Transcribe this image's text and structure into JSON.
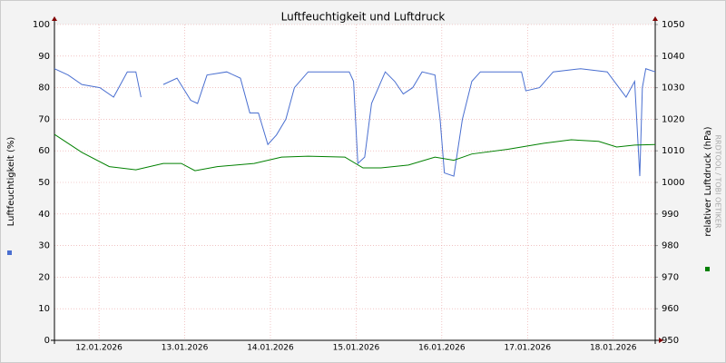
{
  "chart_data": {
    "type": "line",
    "title": "Luftfeuchtigkeit und Luftdruck",
    "watermark": "RRDTOOL / TOBI OETIKER",
    "xlim": [
      11.48,
      18.49
    ],
    "xticks": [
      {
        "value": 12,
        "label": "12.01.2026"
      },
      {
        "value": 13,
        "label": "13.01.2026"
      },
      {
        "value": 14,
        "label": "14.01.2026"
      },
      {
        "value": 15,
        "label": "15.01.2026"
      },
      {
        "value": 16,
        "label": "16.01.2026"
      },
      {
        "value": 17,
        "label": "17.01.2026"
      },
      {
        "value": 18,
        "label": "18.01.2026"
      }
    ],
    "ylim": [
      0,
      100
    ],
    "yticks": [
      0,
      10,
      20,
      30,
      40,
      50,
      60,
      70,
      80,
      90,
      100
    ],
    "y2lim": [
      950,
      1050
    ],
    "y2ticks": [
      950,
      960,
      970,
      980,
      990,
      1000,
      1010,
      1020,
      1030,
      1040,
      1050
    ],
    "grid": true,
    "series": [
      {
        "name": "Luftfeuchtigkeit (%)",
        "color": "#4a6fd0",
        "x": [
          11.48,
          11.64,
          11.8,
          12.01,
          12.17,
          12.33,
          12.43,
          12.49,
          12.52,
          12.75,
          12.91,
          13.07,
          13.15,
          13.26,
          13.49,
          13.65,
          13.76,
          13.86,
          13.97,
          14.07,
          14.18,
          14.28,
          14.44,
          14.65,
          14.92,
          14.97,
          15.02,
          15.1,
          15.18,
          15.34,
          15.45,
          15.55,
          15.66,
          15.77,
          15.92,
          15.98,
          16.03,
          16.14,
          16.24,
          16.35,
          16.45,
          16.77,
          16.93,
          16.98,
          17.14,
          17.3,
          17.62,
          17.93,
          18.15,
          18.25,
          18.31,
          18.34,
          18.38,
          18.49
        ],
        "values": [
          86,
          84,
          81,
          80,
          77,
          85,
          85,
          77,
          null,
          81,
          83,
          76,
          75,
          84,
          85,
          83,
          72,
          72,
          62,
          65,
          70,
          80,
          85,
          85,
          85,
          82,
          56,
          58,
          75,
          85,
          82,
          78,
          80,
          85,
          84,
          70,
          53,
          52,
          70,
          82,
          85,
          85,
          85,
          79,
          80,
          85,
          86,
          85,
          77,
          82,
          52,
          80,
          86,
          85
        ]
      },
      {
        "name": "relativer Luftdruck (hPa)",
        "color": "#008000",
        "axis": "y2",
        "x": [
          11.48,
          11.8,
          12.12,
          12.43,
          12.75,
          12.96,
          13.12,
          13.38,
          13.81,
          14.13,
          14.44,
          14.87,
          15.08,
          15.29,
          15.61,
          15.92,
          16.14,
          16.35,
          16.77,
          17.19,
          17.51,
          17.83,
          18.04,
          18.25,
          18.49
        ],
        "values": [
          1015.2,
          1009.5,
          1005,
          1004,
          1006,
          1006,
          1003.7,
          1005,
          1006,
          1008,
          1008.3,
          1008,
          1004.6,
          1004.6,
          1005.5,
          1008,
          1007,
          1009,
          1010.5,
          1012.4,
          1013.5,
          1013,
          1011.2,
          1011.8,
          1012
        ]
      }
    ]
  }
}
